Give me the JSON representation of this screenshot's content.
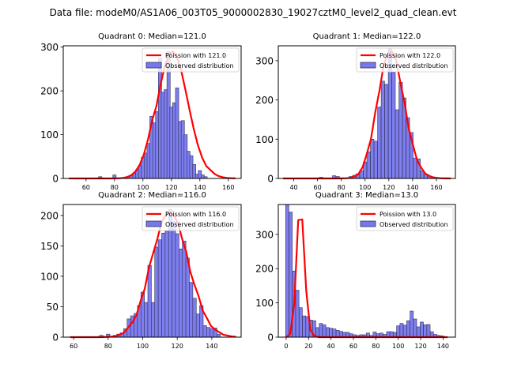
{
  "suptitle": "Data file: modeM0/AS1A06_003T05_9000002830_19027cztM0_level2_quad_clean.evt",
  "colors": {
    "bar_fill": "#7777ee",
    "bar_edge": "#33335a",
    "poisson": "#ff0000"
  },
  "chart_data": [
    {
      "type": "bar",
      "title": "Quadrant 0: Median=121.0",
      "xlim": [
        44,
        169
      ],
      "ylim": [
        0,
        303
      ],
      "xticks": [
        60,
        80,
        100,
        120,
        140,
        160
      ],
      "yticks": [
        0,
        100,
        200,
        300
      ],
      "legend": {
        "placement": "top-right",
        "entries": [
          "Poission with 121.0",
          "Observed distribution"
        ]
      },
      "bin_width": 2.3,
      "bars": [
        [
          70,
          4
        ],
        [
          80,
          8
        ],
        [
          88,
          3
        ],
        [
          90,
          5
        ],
        [
          92,
          7
        ],
        [
          94,
          12
        ],
        [
          96,
          20
        ],
        [
          98,
          30
        ],
        [
          100,
          48
        ],
        [
          102,
          58
        ],
        [
          104,
          80
        ],
        [
          106,
          142
        ],
        [
          108,
          127
        ],
        [
          110,
          153
        ],
        [
          112,
          275
        ],
        [
          114,
          197
        ],
        [
          116,
          203
        ],
        [
          118,
          290
        ],
        [
          120,
          163
        ],
        [
          122,
          173
        ],
        [
          124,
          207
        ],
        [
          126,
          130
        ],
        [
          128,
          132
        ],
        [
          130,
          100
        ],
        [
          132,
          62
        ],
        [
          134,
          52
        ],
        [
          136,
          32
        ],
        [
          138,
          10
        ],
        [
          140,
          18
        ],
        [
          142,
          8
        ],
        [
          144,
          4
        ]
      ],
      "poisson_mean": 121.0,
      "poisson_peak": 290,
      "poisson_x": [
        48,
        165
      ]
    },
    {
      "type": "bar",
      "title": "Quadrant 1: Median=122.0",
      "xlim": [
        27,
        176
      ],
      "ylim": [
        0,
        338
      ],
      "xticks": [
        40,
        60,
        80,
        100,
        120,
        140,
        160
      ],
      "yticks": [
        0,
        100,
        200,
        300
      ],
      "legend": {
        "placement": "top-right",
        "entries": [
          "Poission with 122.0",
          "Observed distribution"
        ]
      },
      "bin_width": 2.9,
      "bars": [
        [
          63,
          3
        ],
        [
          74,
          7
        ],
        [
          77,
          5
        ],
        [
          88,
          5
        ],
        [
          91,
          8
        ],
        [
          94,
          12
        ],
        [
          97,
          20
        ],
        [
          100,
          42
        ],
        [
          103,
          68
        ],
        [
          106,
          100
        ],
        [
          109,
          95
        ],
        [
          112,
          182
        ],
        [
          115,
          248
        ],
        [
          118,
          240
        ],
        [
          121,
          330
        ],
        [
          124,
          270
        ],
        [
          127,
          175
        ],
        [
          130,
          245
        ],
        [
          133,
          205
        ],
        [
          136,
          155
        ],
        [
          139,
          117
        ],
        [
          142,
          52
        ],
        [
          145,
          50
        ],
        [
          148,
          20
        ],
        [
          151,
          10
        ],
        [
          154,
          6
        ],
        [
          157,
          4
        ]
      ],
      "poisson_mean": 122.0,
      "poisson_peak": 326,
      "poisson_x": [
        31,
        172
      ]
    },
    {
      "type": "bar",
      "title": "Quadrant 2: Median=116.0",
      "xlim": [
        54,
        157
      ],
      "ylim": [
        0,
        218
      ],
      "xticks": [
        60,
        80,
        100,
        120,
        140
      ],
      "yticks": [
        0,
        50,
        100,
        150,
        200
      ],
      "legend": {
        "placement": "top-right",
        "entries": [
          "Poission with 116.0",
          "Observed distribution"
        ]
      },
      "bin_width": 2.05,
      "bars": [
        [
          76,
          3
        ],
        [
          80,
          5
        ],
        [
          84,
          3
        ],
        [
          86,
          5
        ],
        [
          88,
          7
        ],
        [
          90,
          14
        ],
        [
          92,
          30
        ],
        [
          94,
          35
        ],
        [
          96,
          39
        ],
        [
          98,
          52
        ],
        [
          100,
          74
        ],
        [
          102,
          57
        ],
        [
          104,
          118
        ],
        [
          106,
          57
        ],
        [
          108,
          148
        ],
        [
          110,
          160
        ],
        [
          112,
          171
        ],
        [
          114,
          174
        ],
        [
          116,
          210
        ],
        [
          118,
          190
        ],
        [
          120,
          170
        ],
        [
          122,
          145
        ],
        [
          124,
          158
        ],
        [
          126,
          130
        ],
        [
          128,
          90
        ],
        [
          130,
          64
        ],
        [
          132,
          38
        ],
        [
          134,
          52
        ],
        [
          136,
          19
        ],
        [
          138,
          16
        ],
        [
          140,
          14
        ],
        [
          142,
          15
        ],
        [
          144,
          5
        ]
      ],
      "poisson_mean": 116.0,
      "poisson_peak": 205,
      "poisson_x": [
        58,
        154
      ]
    },
    {
      "type": "bar",
      "title": "Quadrant 3: Median=13.0",
      "xlim": [
        -7,
        151
      ],
      "ylim": [
        0,
        387
      ],
      "xticks": [
        0,
        20,
        40,
        60,
        80,
        100,
        120,
        140
      ],
      "yticks": [
        0,
        100,
        200,
        300
      ],
      "legend": {
        "placement": "top-right",
        "entries": [
          "Poission with 13.0",
          "Observed distribution"
        ]
      },
      "bin_width": 2.9,
      "bars": [
        [
          1,
          387
        ],
        [
          4,
          365
        ],
        [
          7,
          193
        ],
        [
          10,
          137
        ],
        [
          13,
          86
        ],
        [
          16,
          62
        ],
        [
          19,
          60
        ],
        [
          22,
          50
        ],
        [
          25,
          48
        ],
        [
          28,
          28
        ],
        [
          31,
          40
        ],
        [
          34,
          36
        ],
        [
          37,
          28
        ],
        [
          40,
          26
        ],
        [
          43,
          24
        ],
        [
          46,
          20
        ],
        [
          49,
          17
        ],
        [
          52,
          14
        ],
        [
          55,
          14
        ],
        [
          58,
          10
        ],
        [
          61,
          7
        ],
        [
          64,
          5
        ],
        [
          67,
          7
        ],
        [
          70,
          7
        ],
        [
          73,
          12
        ],
        [
          76,
          5
        ],
        [
          79,
          15
        ],
        [
          82,
          10
        ],
        [
          85,
          12
        ],
        [
          88,
          8
        ],
        [
          91,
          16
        ],
        [
          94,
          16
        ],
        [
          97,
          14
        ],
        [
          100,
          33
        ],
        [
          103,
          40
        ],
        [
          106,
          35
        ],
        [
          109,
          48
        ],
        [
          112,
          76
        ],
        [
          115,
          53
        ],
        [
          118,
          30
        ],
        [
          121,
          44
        ],
        [
          124,
          36
        ],
        [
          127,
          37
        ],
        [
          130,
          16
        ],
        [
          133,
          8
        ],
        [
          136,
          5
        ],
        [
          139,
          4
        ]
      ],
      "poisson_mean": 13.0,
      "poisson_peak": 370,
      "poisson_x": [
        0,
        144
      ]
    }
  ]
}
